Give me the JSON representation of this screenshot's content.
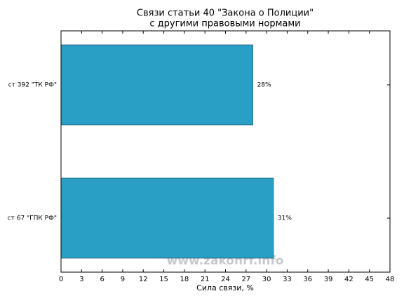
{
  "chart_data": {
    "type": "barh",
    "title": [
      "Связи статьи 40 \"Закона о Полиции\"",
      "с другими правовыми нормами"
    ],
    "xlabel": "Сила связи, %",
    "categories": [
      "ст 392 \"ТК РФ\"",
      "ст 67 \"ГПК РФ\""
    ],
    "values": [
      28,
      31
    ],
    "value_labels": [
      "28%",
      "31%"
    ],
    "color": "#2a9fc6",
    "xlim": [
      0,
      48
    ],
    "xticks": [
      0,
      3,
      6,
      9,
      12,
      15,
      18,
      21,
      24,
      27,
      30,
      33,
      36,
      39,
      42,
      45,
      48
    ],
    "watermark": "www.zakonrf.info"
  }
}
